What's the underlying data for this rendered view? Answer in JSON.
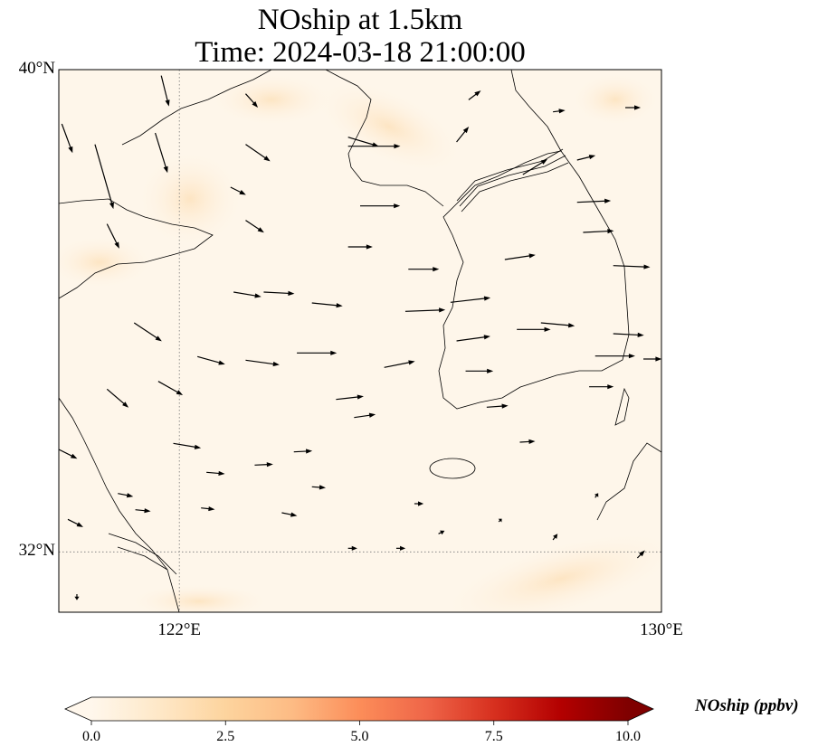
{
  "title": {
    "line1": "NOship at 1.5km",
    "line2": "Time: 2024-03-18 21:00:00"
  },
  "map": {
    "extent": {
      "lon_min": 120,
      "lon_max": 130,
      "lat_min": 31,
      "lat_max": 40
    },
    "lat_labels": [
      {
        "value": 40,
        "text": "40°N"
      },
      {
        "value": 32,
        "text": "32°N"
      }
    ],
    "lon_labels": [
      {
        "value": 122,
        "text": "122°E"
      },
      {
        "value": 130,
        "text": "130°E"
      }
    ],
    "gridlines": {
      "lon": [
        122
      ],
      "lat": [
        32
      ]
    },
    "background_color": "#fef6ea",
    "wind_vectors": [
      [
        124.8,
        38.88,
        10,
        -3
      ],
      [
        124.8,
        38.73,
        17,
        0
      ],
      [
        125.0,
        37.74,
        13,
        0
      ],
      [
        124.8,
        37.06,
        8,
        0
      ],
      [
        125.8,
        36.69,
        10,
        0
      ],
      [
        126.5,
        36.14,
        13,
        1.5
      ],
      [
        125.75,
        35.99,
        13,
        0.5
      ],
      [
        126.6,
        35.5,
        11,
        1.5
      ],
      [
        125.4,
        35.06,
        10,
        2
      ],
      [
        124.6,
        34.53,
        9,
        1
      ],
      [
        124.9,
        34.23,
        7,
        1
      ],
      [
        127.1,
        34.4,
        7,
        0.5
      ],
      [
        126.75,
        35.0,
        9,
        0
      ],
      [
        127.6,
        35.69,
        11,
        0
      ],
      [
        128.0,
        35.8,
        11,
        -1
      ],
      [
        127.4,
        36.85,
        10,
        1.5
      ],
      [
        128.7,
        37.3,
        10,
        0.5
      ],
      [
        128.6,
        37.8,
        11,
        0.5
      ],
      [
        129.2,
        36.75,
        12,
        -0.5
      ],
      [
        129.2,
        35.62,
        10,
        -0.5
      ],
      [
        128.9,
        35.25,
        13,
        0
      ],
      [
        128.8,
        34.74,
        8,
        0
      ],
      [
        129.7,
        35.2,
        6,
        0
      ],
      [
        128.6,
        38.5,
        6,
        1.5
      ],
      [
        127.7,
        38.26,
        8,
        5
      ],
      [
        128.2,
        39.3,
        4,
        0.5
      ],
      [
        126.6,
        38.8,
        4,
        5
      ],
      [
        126.8,
        39.5,
        4,
        3
      ],
      [
        123.95,
        35.3,
        13,
        0
      ],
      [
        123.1,
        35.18,
        11,
        -1.5
      ],
      [
        122.3,
        35.24,
        9,
        -2.5
      ],
      [
        121.65,
        34.83,
        8,
        -4.5
      ],
      [
        121.25,
        35.8,
        9,
        -6
      ],
      [
        120.8,
        34.7,
        7,
        -6
      ],
      [
        120.8,
        37.44,
        4,
        -8
      ],
      [
        120.6,
        38.76,
        6,
        -21
      ],
      [
        120.05,
        39.1,
        3.5,
        -9.5
      ],
      [
        121.6,
        38.95,
        4,
        -13
      ],
      [
        121.7,
        39.9,
        2.5,
        -10
      ],
      [
        123.1,
        39.6,
        4,
        -4.5
      ],
      [
        123.1,
        38.76,
        8,
        -5.5
      ],
      [
        122.85,
        38.05,
        5,
        -2.5
      ],
      [
        123.1,
        37.5,
        6,
        -4
      ],
      [
        122.9,
        36.31,
        9,
        -1.5
      ],
      [
        123.4,
        36.31,
        10,
        -0.5
      ],
      [
        124.2,
        36.13,
        10,
        -1
      ],
      [
        121.9,
        33.8,
        9,
        -1.5
      ],
      [
        122.45,
        33.32,
        6,
        -0.5
      ],
      [
        123.25,
        33.44,
        6,
        0.3
      ],
      [
        123.9,
        33.66,
        6,
        0.3
      ],
      [
        127.65,
        33.82,
        5,
        0.3
      ],
      [
        120.98,
        32.97,
        5,
        -1
      ],
      [
        121.27,
        32.7,
        5,
        -0.5
      ],
      [
        122.36,
        32.73,
        4.5,
        -0.5
      ],
      [
        123.7,
        32.65,
        5,
        -1
      ],
      [
        124.2,
        33.08,
        4.5,
        -0.3
      ],
      [
        120.0,
        33.7,
        6,
        -3
      ],
      [
        120.15,
        32.54,
        5,
        -2.5
      ],
      [
        129.6,
        31.9,
        2.5,
        2.5
      ],
      [
        129.4,
        39.37,
        5,
        0
      ],
      [
        125.9,
        32.8,
        3,
        0
      ],
      [
        124.8,
        32.06,
        3,
        0
      ],
      [
        125.6,
        32.06,
        3,
        0
      ],
      [
        126.3,
        32.3,
        2,
        1
      ],
      [
        128.2,
        32.2,
        1.5,
        2
      ],
      [
        128.9,
        32.9,
        1,
        1.5
      ],
      [
        127.3,
        32.5,
        1,
        1
      ],
      [
        120.3,
        31.3,
        0,
        -2
      ]
    ]
  },
  "colorbar": {
    "label": "NOship (ppbv)",
    "min": 0,
    "max": 10,
    "ticks": [
      {
        "value": 0,
        "text": "0.0"
      },
      {
        "value": 2.5,
        "text": "2.5"
      },
      {
        "value": 5,
        "text": "5.0"
      },
      {
        "value": 7.5,
        "text": "7.5"
      },
      {
        "value": 10,
        "text": "10.0"
      }
    ],
    "colors": [
      "#fff7ec",
      "#fee8c8",
      "#fdd49e",
      "#fdbb84",
      "#fc8d59",
      "#ef6548",
      "#d7301f",
      "#b30000",
      "#7f0000"
    ]
  }
}
